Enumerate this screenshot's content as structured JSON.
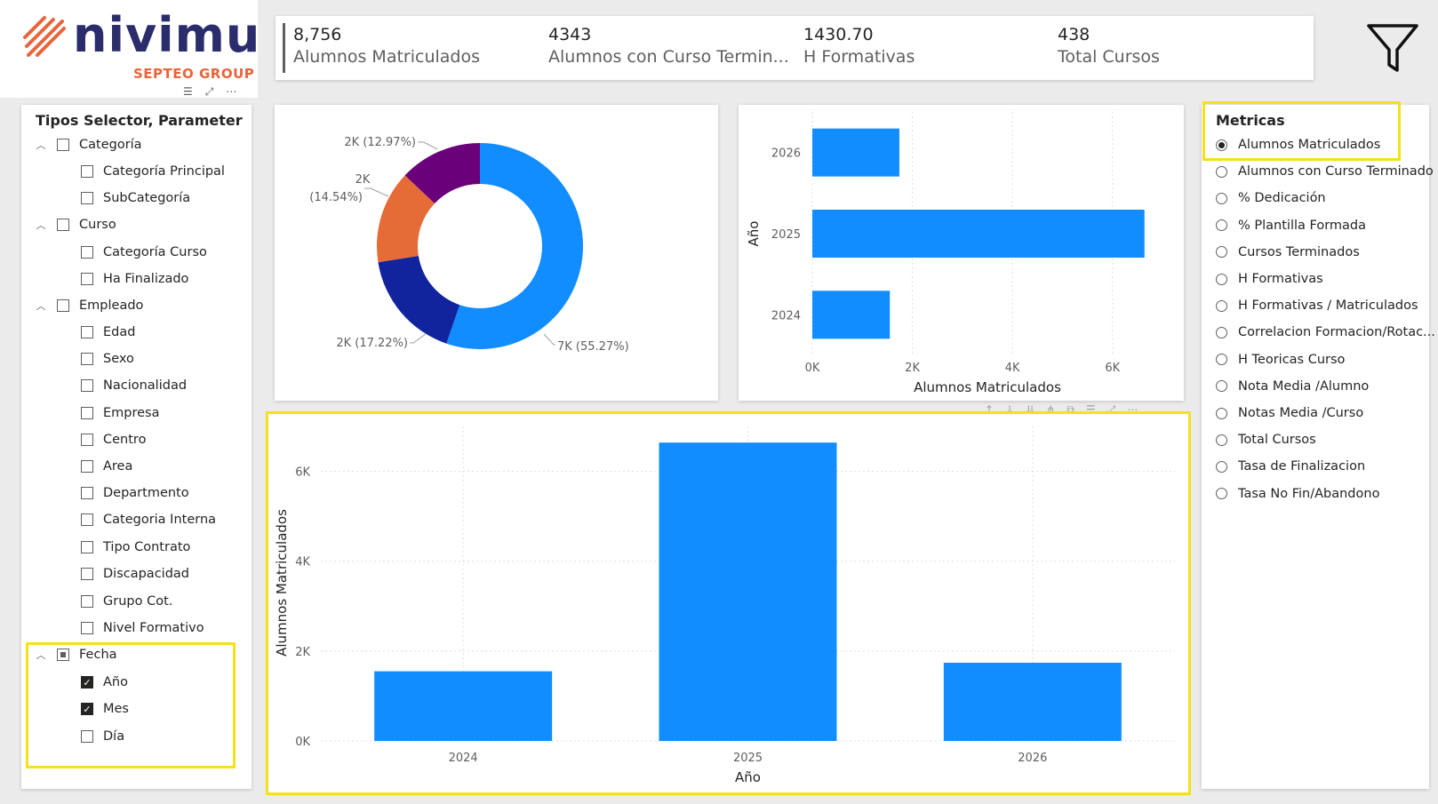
{
  "brand": {
    "name": "nivimu",
    "subtitle": "SEPTEO GROUP",
    "accent": "#e8643c",
    "primary": "#2b2c6b"
  },
  "kpis": [
    {
      "value": "8,756",
      "label": "Alumnos Matriculados"
    },
    {
      "value": "4343",
      "label": "Alumnos con Curso Termin..."
    },
    {
      "value": "1430.70",
      "label": "H Formativas"
    },
    {
      "value": "438",
      "label": "Total Cursos"
    }
  ],
  "left_slicer": {
    "title": "Tipos Selector, Parameter",
    "groups": [
      {
        "label": "Categoría",
        "items": [
          {
            "label": "Categoría Principal",
            "checked": false
          },
          {
            "label": "SubCategoría",
            "checked": false
          }
        ]
      },
      {
        "label": "Curso",
        "items": [
          {
            "label": "Categoría Curso",
            "checked": false
          },
          {
            "label": "Ha Finalizado",
            "checked": false
          }
        ]
      },
      {
        "label": "Empleado",
        "items": [
          {
            "label": "Edad",
            "checked": false
          },
          {
            "label": "Sexo",
            "checked": false
          },
          {
            "label": "Nacionalidad",
            "checked": false
          },
          {
            "label": "Empresa",
            "checked": false
          },
          {
            "label": "Centro",
            "checked": false
          },
          {
            "label": "Area",
            "checked": false
          },
          {
            "label": "Departmento",
            "checked": false
          },
          {
            "label": "Categoria Interna",
            "checked": false
          },
          {
            "label": "Tipo Contrato",
            "checked": false
          },
          {
            "label": "Discapacidad",
            "checked": false
          },
          {
            "label": "Grupo Cot.",
            "checked": false
          },
          {
            "label": "Nivel Formativo",
            "checked": false
          }
        ]
      },
      {
        "label": "Fecha",
        "partial": true,
        "items": [
          {
            "label": "Año",
            "checked": true
          },
          {
            "label": "Mes",
            "checked": true
          },
          {
            "label": "Día",
            "checked": false
          }
        ]
      }
    ]
  },
  "metricas": {
    "title": "Metricas",
    "selected": 0,
    "options": [
      "Alumnos Matriculados",
      "Alumnos con Curso Terminado",
      "% Dedicación",
      "% Plantilla Formada",
      "Cursos Terminados",
      "H Formativas",
      "H Formativas / Matriculados",
      "Correlacion Formacion/Rotac...",
      "H Teoricas Curso",
      "Nota Media /Alumno",
      "Notas Media /Curso",
      "Total Cursos",
      "Tasa de Finalizacion",
      "Tasa No Fin/Abandono"
    ]
  },
  "colors": {
    "blue": "#118dff",
    "dark_blue": "#12239e",
    "orange": "#e66c37",
    "purple": "#6b007b",
    "highlight": "#f5e11a"
  },
  "chart_data": [
    {
      "type": "pie",
      "slices": [
        {
          "label": "7K (55.27%)",
          "value": 55.27,
          "color": "#118dff"
        },
        {
          "label": "2K (17.22%)",
          "value": 17.22,
          "color": "#12239e"
        },
        {
          "label": "2K (14.54%)",
          "value": 14.54,
          "color": "#e66c37"
        },
        {
          "label": "2K (12.97%)",
          "value": 12.97,
          "color": "#6b007b"
        }
      ]
    },
    {
      "type": "bar",
      "orientation": "horizontal",
      "categories": [
        "2026",
        "2025",
        "2024"
      ],
      "values": [
        1740,
        6640,
        1550
      ],
      "xlabel": "Alumnos Matriculados",
      "ylabel": "Año",
      "xticks": [
        "0K",
        "2K",
        "4K",
        "6K"
      ],
      "xlim": [
        0,
        7000
      ]
    },
    {
      "type": "bar",
      "orientation": "vertical",
      "categories": [
        "2024",
        "2025",
        "2026"
      ],
      "values": [
        1550,
        6640,
        1740
      ],
      "xlabel": "Año",
      "ylabel": "Alumnos Matriculados",
      "yticks": [
        "0K",
        "2K",
        "4K",
        "6K"
      ],
      "ylim": [
        0,
        7000
      ]
    }
  ]
}
